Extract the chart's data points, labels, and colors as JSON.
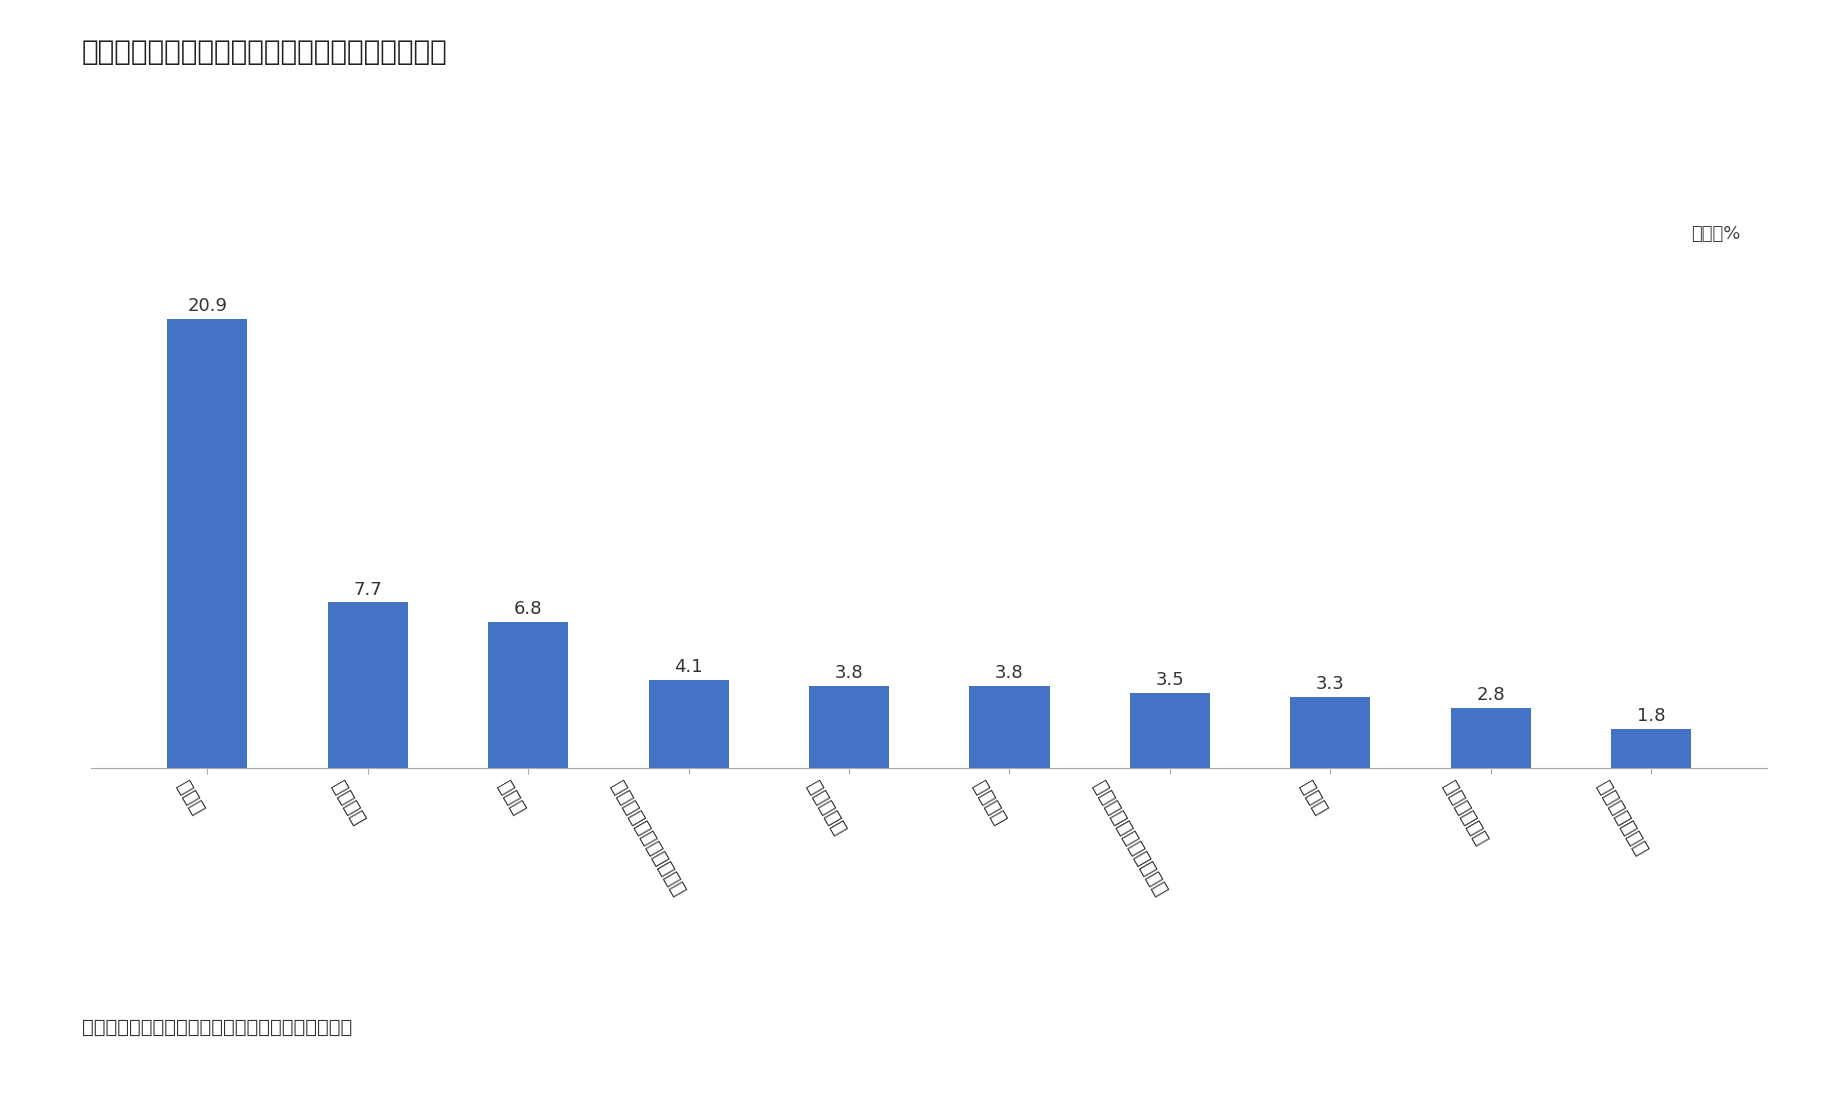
{
  "title": "図表１　韓国の輸出金額に占める主要品目の割合",
  "categories": [
    "半導体",
    "石油製品",
    "自動車",
    "ディスプレイ・センサー",
    "自動車部品",
    "合成樹脂",
    "船舶海洋構造物及び部品",
    "鉄鋼板",
    "無線通信機器",
    "コンピューター"
  ],
  "values": [
    20.9,
    7.7,
    6.8,
    4.1,
    3.8,
    3.8,
    3.5,
    3.3,
    2.8,
    1.8
  ],
  "bar_color": "#4472C4",
  "background_color": "#FFFFFF",
  "unit_label": "単位：%",
  "source_label": "出所）　韓国関税庁「輸出通関資料」より筆者作成",
  "ylim": [
    0,
    24
  ],
  "title_fontsize": 20,
  "label_fontsize": 14,
  "value_fontsize": 13,
  "source_fontsize": 14,
  "unit_fontsize": 13,
  "xtick_rotation": -60
}
